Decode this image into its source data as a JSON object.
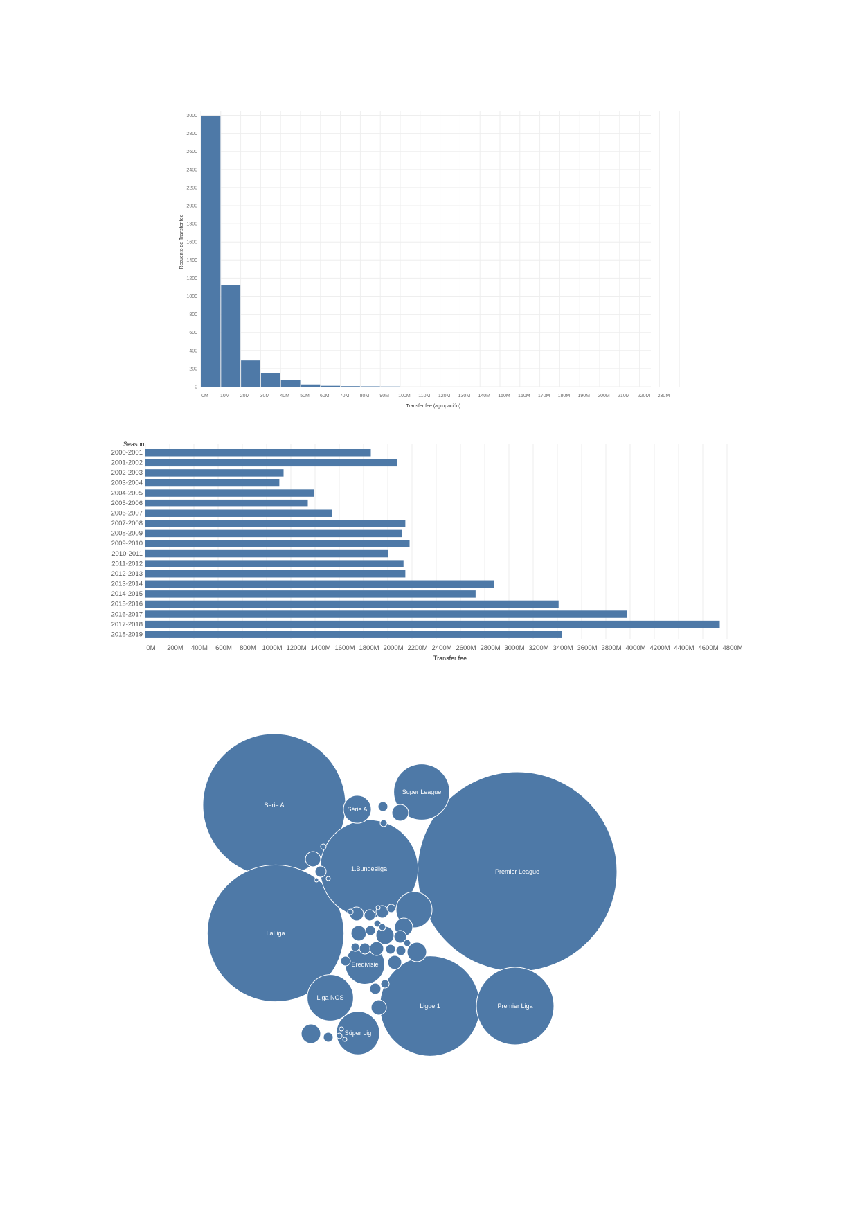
{
  "colors": {
    "bar": "#4e79a7",
    "bubble": "#4e79a7",
    "grid": "#eeeeee",
    "text": "#555555"
  },
  "chart_data": [
    {
      "type": "bar",
      "subtype": "histogram",
      "xlabel": "Transfer fee (agrupación)",
      "ylabel": "Recuento de Transfer fee",
      "x_ticks": [
        "0M",
        "10M",
        "20M",
        "30M",
        "40M",
        "50M",
        "60M",
        "70M",
        "80M",
        "90M",
        "100M",
        "110M",
        "120M",
        "130M",
        "140M",
        "150M",
        "160M",
        "170M",
        "180M",
        "190M",
        "200M",
        "210M",
        "220M",
        "230M"
      ],
      "y_ticks": [
        0,
        200,
        400,
        600,
        800,
        1000,
        1200,
        1400,
        1600,
        1800,
        2000,
        2200,
        2400,
        2600,
        2800,
        3000
      ],
      "ylim": [
        0,
        3050
      ],
      "categories": [
        "0M",
        "10M",
        "20M",
        "30M",
        "40M",
        "50M",
        "60M",
        "70M",
        "80M",
        "90M"
      ],
      "values": [
        2990,
        1120,
        290,
        150,
        70,
        25,
        10,
        6,
        4,
        2
      ],
      "grid": true
    },
    {
      "type": "bar",
      "orientation": "horizontal",
      "category_header": "Season",
      "xlabel": "Transfer fee",
      "x_ticks": [
        "0M",
        "200M",
        "400M",
        "600M",
        "800M",
        "1000M",
        "1200M",
        "1400M",
        "1600M",
        "1800M",
        "2000M",
        "2200M",
        "2400M",
        "2600M",
        "2800M",
        "3000M",
        "3200M",
        "3400M",
        "3600M",
        "3800M",
        "4000M",
        "4200M",
        "4400M",
        "4600M",
        "4800M"
      ],
      "xlim": [
        0,
        4800
      ],
      "categories": [
        "2000-2001",
        "2001-2002",
        "2002-2003",
        "2003-2004",
        "2004-2005",
        "2005-2006",
        "2006-2007",
        "2007-2008",
        "2008-2009",
        "2009-2010",
        "2010-2011",
        "2011-2012",
        "2012-2013",
        "2013-2014",
        "2014-2015",
        "2015-2016",
        "2016-2017",
        "2017-2018",
        "2018-2019"
      ],
      "values": [
        1860,
        2080,
        1140,
        1105,
        1390,
        1340,
        1540,
        2145,
        2120,
        2180,
        2000,
        2130,
        2145,
        2880,
        2725,
        3410,
        3975,
        4740,
        3435
      ],
      "grid": true
    },
    {
      "type": "bubble",
      "labels": [
        "Premier League",
        "Serie A",
        "LaLiga",
        "1.Bundesliga",
        "Ligue 1",
        "Premier Liga",
        "Super League",
        "Süper Lig",
        "Liga NOS",
        "Eredivisie",
        "Série A"
      ],
      "values": [
        16400,
        8400,
        7700,
        3960,
        4140,
        2480,
        1290,
        770,
        880,
        640,
        320
      ]
    }
  ]
}
